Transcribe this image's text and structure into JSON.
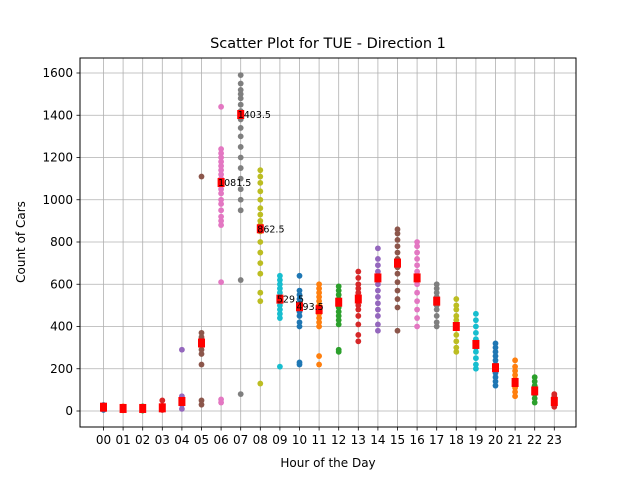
{
  "chart_data": {
    "type": "scatter",
    "title": "Scatter Plot for TUE - Direction 1",
    "xlabel": "Hour of the Day",
    "ylabel": "Count of Cars",
    "categories": [
      "00",
      "01",
      "02",
      "03",
      "04",
      "05",
      "06",
      "07",
      "08",
      "09",
      "10",
      "11",
      "12",
      "13",
      "14",
      "15",
      "16",
      "17",
      "18",
      "19",
      "20",
      "21",
      "22",
      "23"
    ],
    "ylim": [
      -75,
      1680
    ],
    "yticks": [
      0,
      200,
      400,
      600,
      800,
      1000,
      1200,
      1400,
      1600
    ],
    "grid": true,
    "median_color": "#ff0000",
    "series": [
      {
        "category": "00",
        "color": "#1f77b4",
        "values": [
          5,
          10,
          15,
          18,
          22,
          25,
          28
        ],
        "median": 18
      },
      {
        "category": "01",
        "color": "#ff7f0e",
        "values": [
          3,
          8,
          12,
          15,
          18,
          22
        ],
        "median": 12
      },
      {
        "category": "02",
        "color": "#2ca02c",
        "values": [
          2,
          6,
          10,
          14,
          18,
          22
        ],
        "median": 12
      },
      {
        "category": "03",
        "color": "#d62728",
        "values": [
          5,
          10,
          15,
          20,
          25,
          50
        ],
        "median": 15
      },
      {
        "category": "04",
        "color": "#9467bd",
        "values": [
          10,
          30,
          40,
          50,
          60,
          70,
          290
        ],
        "median": 45
      },
      {
        "category": "05",
        "color": "#8c564b",
        "values": [
          30,
          50,
          220,
          270,
          290,
          310,
          330,
          350,
          370,
          1110
        ],
        "median": 322
      },
      {
        "category": "06",
        "color": "#e377c2",
        "values": [
          40,
          55,
          610,
          880,
          900,
          920,
          950,
          980,
          1000,
          1030,
          1050,
          1080,
          1100,
          1120,
          1140,
          1160,
          1180,
          1200,
          1220,
          1240,
          1440
        ],
        "median": 1081.5
      },
      {
        "category": "07",
        "color": "#7f7f7f",
        "values": [
          80,
          620,
          950,
          1000,
          1050,
          1100,
          1150,
          1200,
          1250,
          1300,
          1340,
          1380,
          1400,
          1420,
          1450,
          1480,
          1500,
          1520,
          1550,
          1590
        ],
        "median": 1403.5
      },
      {
        "category": "08",
        "color": "#bcbd22",
        "values": [
          130,
          520,
          560,
          650,
          700,
          750,
          800,
          850,
          880,
          900,
          930,
          960,
          1000,
          1040,
          1080,
          1110,
          1140
        ],
        "median": 862.5
      },
      {
        "category": "09",
        "color": "#17becf",
        "values": [
          210,
          440,
          460,
          480,
          500,
          520,
          540,
          560,
          580,
          600,
          620,
          640
        ],
        "median": 529.5
      },
      {
        "category": "10",
        "color": "#1f77b4",
        "values": [
          220,
          230,
          400,
          420,
          450,
          470,
          490,
          510,
          530,
          550,
          570,
          640
        ],
        "median": 493.5
      },
      {
        "category": "11",
        "color": "#ff7f0e",
        "values": [
          220,
          260,
          400,
          420,
          440,
          460,
          480,
          500,
          520,
          540,
          560,
          580,
          600
        ],
        "median": 480
      },
      {
        "category": "12",
        "color": "#2ca02c",
        "values": [
          280,
          290,
          410,
          430,
          450,
          470,
          490,
          510,
          530,
          550,
          570,
          590
        ],
        "median": 515
      },
      {
        "category": "13",
        "color": "#d62728",
        "values": [
          330,
          360,
          410,
          450,
          480,
          500,
          520,
          540,
          560,
          580,
          600,
          630,
          660
        ],
        "median": 530
      },
      {
        "category": "14",
        "color": "#9467bd",
        "values": [
          380,
          410,
          450,
          480,
          510,
          540,
          570,
          600,
          630,
          660,
          690,
          720,
          770
        ],
        "median": 630
      },
      {
        "category": "15",
        "color": "#8c564b",
        "values": [
          380,
          490,
          530,
          570,
          610,
          650,
          680,
          700,
          720,
          750,
          780,
          810,
          840,
          860
        ],
        "median": 700
      },
      {
        "category": "16",
        "color": "#e377c2",
        "values": [
          400,
          440,
          480,
          520,
          560,
          600,
          630,
          660,
          690,
          720,
          750,
          780,
          800
        ],
        "median": 630
      },
      {
        "category": "17",
        "color": "#7f7f7f",
        "values": [
          400,
          420,
          450,
          480,
          500,
          520,
          540,
          560,
          580,
          600
        ],
        "median": 520
      },
      {
        "category": "18",
        "color": "#bcbd22",
        "values": [
          280,
          300,
          330,
          360,
          390,
          410,
          430,
          450,
          480,
          500,
          530
        ],
        "median": 400
      },
      {
        "category": "19",
        "color": "#17becf",
        "values": [
          200,
          220,
          250,
          280,
          300,
          320,
          340,
          370,
          400,
          430,
          460
        ],
        "median": 315
      },
      {
        "category": "20",
        "color": "#1f77b4",
        "values": [
          120,
          140,
          160,
          180,
          200,
          220,
          240,
          260,
          280,
          300,
          320
        ],
        "median": 205
      },
      {
        "category": "21",
        "color": "#ff7f0e",
        "values": [
          70,
          90,
          110,
          130,
          150,
          170,
          190,
          210,
          240
        ],
        "median": 135
      },
      {
        "category": "22",
        "color": "#2ca02c",
        "values": [
          40,
          60,
          80,
          100,
          120,
          140,
          160
        ],
        "median": 95
      },
      {
        "category": "23",
        "color": "#d62728",
        "values": [
          20,
          30,
          40,
          50,
          60,
          70,
          80
        ],
        "median": 45
      }
    ],
    "annotations": [
      {
        "category": "07",
        "value": 1403.5,
        "label": "1403.5"
      },
      {
        "category": "06",
        "value": 1081.5,
        "label": "1081.5"
      },
      {
        "category": "08",
        "value": 862.5,
        "label": "862.5"
      },
      {
        "category": "09",
        "value": 529.5,
        "label": "529.5"
      },
      {
        "category": "10",
        "value": 493.5,
        "label": "493.5"
      }
    ]
  }
}
